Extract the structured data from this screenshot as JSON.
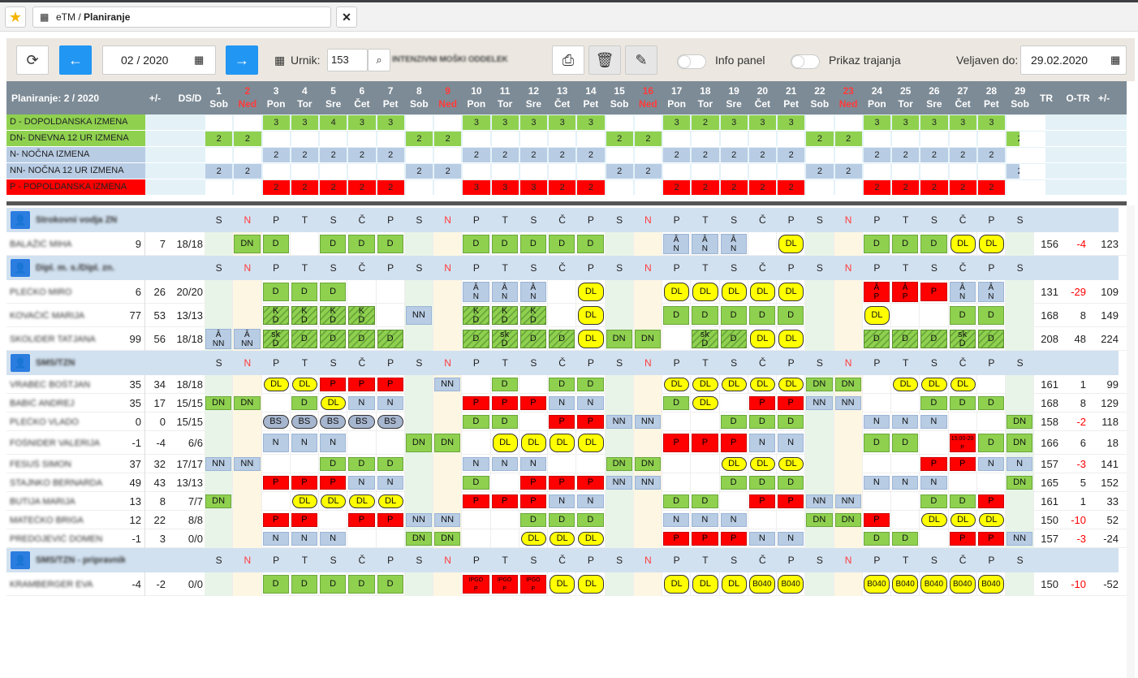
{
  "app": {
    "title_app": "eTM",
    "title_sep": "/",
    "title_page": "Planiranje",
    "star_icon": "star-icon",
    "close_label": "✕"
  },
  "toolbar": {
    "date": "02 / 2020",
    "urnik_label": "Urnik:",
    "urnik_value": "153",
    "ward": "INTENZIVNI MOŠKI ODDELEK",
    "info_panel": "Info panel",
    "prikaz_trajanja": "Prikaz trajanja",
    "veljaven_label": "Veljaven do:",
    "veljaven_value": "29.02.2020"
  },
  "header": {
    "title": "Planiranje: 2 / 2020",
    "pm": "+/-",
    "dsd": "DS/D",
    "tr": "TR",
    "otr": "O-TR",
    "otr_pm": "+/-"
  },
  "days": [
    {
      "n": "1",
      "d": "Sob",
      "k": "sat"
    },
    {
      "n": "2",
      "d": "Ned",
      "k": "sun"
    },
    {
      "n": "3",
      "d": "Pon"
    },
    {
      "n": "4",
      "d": "Tor"
    },
    {
      "n": "5",
      "d": "Sre"
    },
    {
      "n": "6",
      "d": "Čet"
    },
    {
      "n": "7",
      "d": "Pet"
    },
    {
      "n": "8",
      "d": "Sob",
      "k": "sat"
    },
    {
      "n": "9",
      "d": "Ned",
      "k": "sun"
    },
    {
      "n": "10",
      "d": "Pon"
    },
    {
      "n": "11",
      "d": "Tor"
    },
    {
      "n": "12",
      "d": "Sre"
    },
    {
      "n": "13",
      "d": "Čet"
    },
    {
      "n": "14",
      "d": "Pet"
    },
    {
      "n": "15",
      "d": "Sob",
      "k": "sat"
    },
    {
      "n": "16",
      "d": "Ned",
      "k": "sun"
    },
    {
      "n": "17",
      "d": "Pon"
    },
    {
      "n": "18",
      "d": "Tor"
    },
    {
      "n": "19",
      "d": "Sre"
    },
    {
      "n": "20",
      "d": "Čet"
    },
    {
      "n": "21",
      "d": "Pet"
    },
    {
      "n": "22",
      "d": "Sob",
      "k": "sat"
    },
    {
      "n": "23",
      "d": "Ned",
      "k": "sun"
    },
    {
      "n": "24",
      "d": "Pon"
    },
    {
      "n": "25",
      "d": "Tor"
    },
    {
      "n": "26",
      "d": "Sre"
    },
    {
      "n": "27",
      "d": "Čet"
    },
    {
      "n": "28",
      "d": "Pet"
    },
    {
      "n": "29",
      "d": "Sob",
      "k": "sat"
    }
  ],
  "weekletters": [
    "S",
    "N",
    "P",
    "T",
    "S",
    "Č",
    "P",
    "S",
    "N",
    "P",
    "T",
    "S",
    "Č",
    "P",
    "S",
    "N",
    "P",
    "T",
    "S",
    "Č",
    "P",
    "S",
    "N",
    "P",
    "T",
    "S",
    "Č",
    "P",
    "S"
  ],
  "summary": [
    {
      "label": "D - DOPOLDANSKA IZMENA",
      "color": "#8fd14f",
      "bg": "#e4f2f8",
      "fill": "#8fd14f",
      "v": [
        "",
        "",
        "3",
        "3",
        "4",
        "3",
        "3",
        "",
        "",
        "3",
        "3",
        "3",
        "3",
        "3",
        "",
        "",
        "3",
        "2",
        "3",
        "3",
        "3",
        "",
        "",
        "3",
        "3",
        "3",
        "3",
        "3",
        ""
      ]
    },
    {
      "label": "DN- DNEVNA 12 UR IZMENA",
      "color": "#8fd14f",
      "bg": "#e4f2f8",
      "fill": "#8fd14f",
      "v": [
        "2",
        "2",
        "",
        "",
        "",
        "",
        "",
        "2",
        "2",
        "",
        "",
        "",
        "",
        "",
        "2",
        "2",
        "",
        "",
        "",
        "",
        "",
        "2",
        "2",
        "",
        "",
        "",
        "",
        "",
        "2"
      ]
    },
    {
      "label": "N- NOČNA IZMENA",
      "color": "#b8cce4",
      "bg": "#e4f2f8",
      "fill": "#b8cce4",
      "v": [
        "",
        "",
        "2",
        "2",
        "2",
        "2",
        "2",
        "",
        "",
        "2",
        "2",
        "2",
        "2",
        "2",
        "",
        "",
        "2",
        "2",
        "2",
        "2",
        "2",
        "",
        "",
        "2",
        "2",
        "2",
        "2",
        "2",
        ""
      ]
    },
    {
      "label": "NN- NOČNA 12 UR IZMENA",
      "color": "#b8cce4",
      "bg": "#e4f2f8",
      "fill": "#b8cce4",
      "v": [
        "2",
        "2",
        "",
        "",
        "",
        "",
        "",
        "2",
        "2",
        "",
        "",
        "",
        "",
        "",
        "2",
        "2",
        "",
        "",
        "",
        "",
        "",
        "2",
        "2",
        "",
        "",
        "",
        "",
        "",
        "2"
      ]
    },
    {
      "label": "P - POPOLDANSKA IZMENA",
      "color": "#ff0000",
      "bg": "#e4f2f8",
      "fill": "#ff0000",
      "v": [
        "",
        "",
        "2",
        "2",
        "2",
        "2",
        "2",
        "",
        "",
        "3",
        "3",
        "3",
        "2",
        "2",
        "",
        "",
        "2",
        "2",
        "2",
        "2",
        "2",
        "",
        "",
        "2",
        "2",
        "2",
        "2",
        "2",
        ""
      ]
    }
  ],
  "groups": [
    {
      "name": "Strokovni vodja ZN",
      "rows": [
        {
          "name": "BALAŽIČ MIHA",
          "a": "9",
          "b": "7",
          "c": "18/18",
          "tr": "156",
          "o": "-4",
          "p": "123",
          "s": [
            "",
            "DN",
            "D",
            "",
            "D",
            "D",
            "D",
            "",
            "",
            "D",
            "D",
            "D",
            "D",
            "D",
            "",
            "",
            "ÂN",
            "ÂN",
            "ÂN",
            "",
            "DL",
            "",
            "",
            "D",
            "D",
            "D",
            "DL",
            "DL",
            ""
          ]
        }
      ]
    },
    {
      "name": "Dipl. m. s./Dipl. zn.",
      "rows": [
        {
          "name": "PLEČKO MIRO",
          "a": "6",
          "b": "26",
          "c": "20/20",
          "tr": "131",
          "o": "-29",
          "p": "109",
          "s": [
            "",
            "",
            "D",
            "D",
            "D",
            "",
            "",
            "",
            "",
            "ÂN",
            "ÂN",
            "ÂN",
            "",
            "DL",
            "",
            "",
            "DL",
            "DL",
            "DL",
            "DL",
            "DL",
            "",
            "",
            "ÂP",
            "ÂP",
            "P",
            "ÂN",
            "ÂN",
            ""
          ]
        },
        {
          "name": "KOVAČIČ MARIJA",
          "a": "77",
          "b": "53",
          "c": "13/13",
          "tr": "168",
          "o": "8",
          "p": "149",
          "s": [
            "",
            "",
            "hKD",
            "hKD",
            "hKD",
            "hKD",
            "",
            "NN",
            "",
            "hKD",
            "hKD",
            "hKD",
            "",
            "DL",
            "",
            "",
            "D",
            "D",
            "D",
            "D",
            "D",
            "",
            "",
            "DL",
            "",
            "",
            "D",
            "D",
            ""
          ]
        },
        {
          "name": "SKOLIDER TATJANA",
          "a": "99",
          "b": "56",
          "c": "18/18",
          "tr": "208",
          "o": "48",
          "p": "224",
          "s": [
            "ÂNN",
            "ÂNN",
            "hskD",
            "hD",
            "hD",
            "hD",
            "hD",
            "",
            "",
            "hD",
            "hskD",
            "hD",
            "hD",
            "DL",
            "DN",
            "DN",
            "",
            "hskD",
            "hD",
            "DL",
            "DL",
            "",
            "",
            "hD",
            "hD",
            "hD",
            "hskD",
            "hD",
            ""
          ]
        }
      ]
    },
    {
      "name": "SMS/TZN",
      "rows": [
        {
          "name": "VRABEC BOŠTJAN",
          "a": "35",
          "b": "34",
          "c": "18/18",
          "tr": "161",
          "o": "1",
          "p": "99",
          "s": [
            "",
            "",
            "DL",
            "DL",
            "P",
            "P",
            "P",
            "",
            "NN",
            "",
            "D",
            "",
            "D",
            "D",
            "",
            "",
            "DL",
            "DL",
            "DL",
            "DL",
            "DL",
            "DN",
            "DN",
            "",
            "DL",
            "DL",
            "DL",
            "",
            ""
          ]
        },
        {
          "name": "BABIČ ANDREJ",
          "a": "35",
          "b": "17",
          "c": "15/15",
          "tr": "168",
          "o": "8",
          "p": "129",
          "s": [
            "DN",
            "DN",
            "",
            "D",
            "DL",
            "N",
            "N",
            "",
            "",
            "P",
            "P",
            "P",
            "N",
            "N",
            "",
            "",
            "D",
            "DL",
            "",
            "P",
            "P",
            "NN",
            "NN",
            "",
            "",
            "D",
            "D",
            "D",
            ""
          ]
        },
        {
          "name": "PLEČKO VLADO",
          "a": "0",
          "b": "0",
          "c": "15/15",
          "tr": "158",
          "o": "-2",
          "p": "118",
          "s": [
            "",
            "",
            "BS",
            "BS",
            "BS",
            "BS",
            "BS",
            "",
            "",
            "D",
            "D",
            "",
            "P",
            "P",
            "NN",
            "NN",
            "",
            "",
            "D",
            "D",
            "D",
            "",
            "",
            "N",
            "N",
            "N",
            "",
            "",
            "DN"
          ]
        },
        {
          "name": "FOŠNIDER VALERIJA",
          "a": "-1",
          "b": "-4",
          "c": "6/6",
          "tr": "166",
          "o": "6",
          "p": "18",
          "s": [
            "",
            "",
            "N",
            "N",
            "N",
            "",
            "",
            "DN",
            "DN",
            "",
            "DL",
            "DL",
            "DL",
            "DL",
            "",
            "",
            "P",
            "P",
            "P",
            "N",
            "N",
            "",
            "",
            "D",
            "D",
            "",
            "t15:00-20P",
            "D",
            "DN"
          ]
        },
        {
          "name": "FESUŠ SIMON",
          "a": "37",
          "b": "32",
          "c": "17/17",
          "tr": "157",
          "o": "-3",
          "p": "141",
          "s": [
            "NN",
            "NN",
            "",
            "",
            "D",
            "D",
            "D",
            "",
            "",
            "N",
            "N",
            "N",
            "",
            "",
            "DN",
            "DN",
            "",
            "",
            "DL",
            "DL",
            "DL",
            "",
            "",
            "",
            "",
            "P",
            "P",
            "N",
            "N"
          ]
        },
        {
          "name": "STAJNKO BERNARDA",
          "a": "49",
          "b": "43",
          "c": "13/13",
          "tr": "165",
          "o": "5",
          "p": "152",
          "s": [
            "",
            "",
            "P",
            "P",
            "P",
            "N",
            "N",
            "",
            "",
            "D",
            "",
            "P",
            "P",
            "P",
            "NN",
            "NN",
            "",
            "",
            "D",
            "D",
            "D",
            "",
            "",
            "N",
            "N",
            "N",
            "",
            "",
            "DN"
          ]
        },
        {
          "name": "BUTIJA MARIJA",
          "a": "13",
          "b": "8",
          "c": "7/7",
          "tr": "161",
          "o": "1",
          "p": "33",
          "s": [
            "DN",
            "",
            "",
            "DL",
            "DL",
            "DL",
            "DL",
            "",
            "",
            "P",
            "P",
            "P",
            "N",
            "N",
            "",
            "",
            "D",
            "D",
            "",
            "P",
            "P",
            "NN",
            "NN",
            "",
            "",
            "D",
            "D",
            "P",
            ""
          ]
        },
        {
          "name": "MATEČKO BRIGA",
          "a": "12",
          "b": "22",
          "c": "8/8",
          "tr": "150",
          "o": "-10",
          "p": "52",
          "s": [
            "",
            "",
            "P",
            "P",
            "",
            "P",
            "P",
            "NN",
            "NN",
            "",
            "",
            "D",
            "D",
            "D",
            "",
            "",
            "N",
            "N",
            "N",
            "",
            "",
            "DN",
            "DN",
            "P",
            "",
            "DL",
            "DL",
            "DL",
            ""
          ]
        },
        {
          "name": "PREDOJEVIČ DOMEN",
          "a": "-1",
          "b": "3",
          "c": "0/0",
          "tr": "157",
          "o": "-3",
          "p": "-24",
          "s": [
            "",
            "",
            "N",
            "N",
            "N",
            "",
            "",
            "DN",
            "DN",
            "",
            "",
            "DL",
            "DL",
            "DL",
            "",
            "",
            "P",
            "P",
            "P",
            "N",
            "N",
            "",
            "",
            "D",
            "D",
            "",
            "P",
            "P",
            "NN"
          ]
        }
      ]
    },
    {
      "name": "SMS/TZN - pripravnik",
      "rows": [
        {
          "name": "KRAMBERGER EVA",
          "a": "-4",
          "b": "-2",
          "c": "0/0",
          "tr": "150",
          "o": "-10",
          "p": "-52",
          "s": [
            "",
            "",
            "D",
            "D",
            "D",
            "D",
            "D",
            "",
            "",
            "iIPGOP",
            "iIPGOP",
            "iIPGOP",
            "DL",
            "DL",
            "",
            "",
            "DL",
            "DL",
            "DL",
            "B040",
            "B040",
            "",
            "",
            "B040",
            "B040",
            "B040",
            "B040",
            "B040",
            ""
          ]
        }
      ]
    }
  ]
}
